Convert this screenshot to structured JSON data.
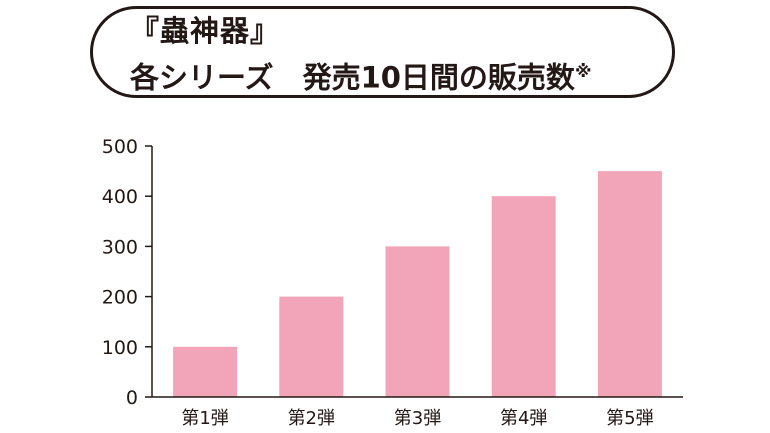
{
  "title": {
    "line1": "『蟲神器』",
    "line2_series": "各シリーズ",
    "line2_metric": "発売10日間の販売数",
    "line2_note": "※"
  },
  "colors": {
    "bar": "#f2a5b8",
    "axis": "#231815",
    "text": "#231815"
  },
  "chart_data": {
    "type": "bar",
    "title": "『蟲神器』 各シリーズ 発売10日間の販売数※",
    "xlabel": "",
    "ylabel": "",
    "categories": [
      "第1弾",
      "第2弾",
      "第3弾",
      "第4弾",
      "第5弾"
    ],
    "values": [
      100,
      200,
      300,
      400,
      450
    ],
    "ylim": [
      0,
      500
    ],
    "yticks": [
      0,
      100,
      200,
      300,
      400,
      500
    ],
    "grid": false,
    "legend": "none"
  }
}
